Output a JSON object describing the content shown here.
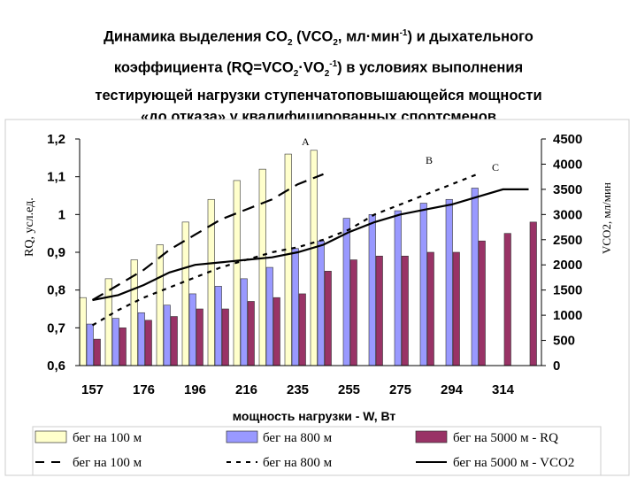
{
  "title": {
    "line1": "Динамика выделения CO",
    "sub1": "2",
    "line1b": " (VCO",
    "sub1b": "2",
    "line1c": ", мл·мин",
    "sup1": "-1",
    "line1d": ") и дыхательного",
    "line2": "коэффициента (RQ=VCO",
    "sub2": "2",
    "line2b": "·VO",
    "sub2b": "2",
    "sup2": "-1",
    "line2c": ") в условиях выполнения",
    "line3": "тестирующей нагрузки ступенчатоповышающейся мощности",
    "line4": "«до отказа» у квалифицированных спортсменов"
  },
  "chart_data": {
    "type": "bar",
    "xlabel": "мощность нагрузки - W, Вт",
    "ylabel_left": "RQ, усл.ед.",
    "ylabel_right": "VCO2, мл/мин",
    "ylim_left": [
      0.6,
      1.2
    ],
    "ylim_right": [
      0,
      4500
    ],
    "left_ticks": [
      "0,6",
      "0,7",
      "0,8",
      "0,9",
      "1",
      "1,1",
      "1,2"
    ],
    "right_ticks": [
      "0",
      "500",
      "1000",
      "1500",
      "2000",
      "2500",
      "3000",
      "3500",
      "4000",
      "4500"
    ],
    "x_tick_labels": [
      "157",
      "176",
      "196",
      "216",
      "235",
      "255",
      "275",
      "294",
      "314"
    ],
    "annotations": [
      "A",
      "B",
      "C"
    ],
    "colors": {
      "run100": "#ffffcc",
      "run800": "#9999ff",
      "run5000": "#993366",
      "line": "#000000"
    },
    "rq_bars": [
      {
        "name": "бег на 100 м",
        "values": [
          0.78,
          0.83,
          0.88,
          0.92,
          0.98,
          1.04,
          1.09,
          1.12,
          1.16,
          1.17
        ]
      },
      {
        "name": "бег на 800 м",
        "values": [
          0.71,
          0.725,
          0.74,
          0.76,
          0.79,
          0.81,
          0.83,
          0.86,
          0.91,
          0.93,
          0.99,
          1.0,
          1.01,
          1.03,
          1.04,
          1.07
        ]
      },
      {
        "name": "бег на 5000 м",
        "values": [
          0.67,
          0.7,
          0.72,
          0.73,
          0.75,
          0.75,
          0.77,
          0.78,
          0.79,
          0.85,
          0.88,
          0.89,
          0.89,
          0.9,
          0.9,
          0.93,
          0.95,
          0.98
        ]
      }
    ],
    "vco2_lines": [
      {
        "name": "бег на 100 м",
        "style": "long-dash",
        "values": [
          1300,
          1600,
          1900,
          2300,
          2600,
          2900,
          3100,
          3300,
          3600,
          3800
        ]
      },
      {
        "name": "бег на 800 м",
        "style": "short-dash",
        "values": [
          800,
          1100,
          1350,
          1550,
          1750,
          1950,
          2100,
          2250,
          2350,
          2500,
          2700,
          3000,
          3200,
          3400,
          3600,
          3800
        ]
      },
      {
        "name": "бег на 5000 м",
        "style": "solid",
        "values": [
          1300,
          1400,
          1600,
          1850,
          2000,
          2050,
          2100,
          2150,
          2250,
          2400,
          2650,
          2850,
          3000,
          3100,
          3200,
          3350,
          3500,
          3500
        ]
      }
    ],
    "legend": [
      {
        "label": "бег на 100 м",
        "kind": "bar",
        "series": "run100"
      },
      {
        "label": "бег на 800 м",
        "kind": "bar",
        "series": "run800"
      },
      {
        "label": "бег на 5000 м - RQ",
        "kind": "bar",
        "series": "run5000"
      },
      {
        "label": "бег на 100 м",
        "kind": "line",
        "series": "long-dash"
      },
      {
        "label": "бег на 800 м",
        "kind": "line",
        "series": "short-dash"
      },
      {
        "label": "бег на 5000 м - VCO2",
        "kind": "line",
        "series": "solid"
      }
    ],
    "grid": false
  }
}
